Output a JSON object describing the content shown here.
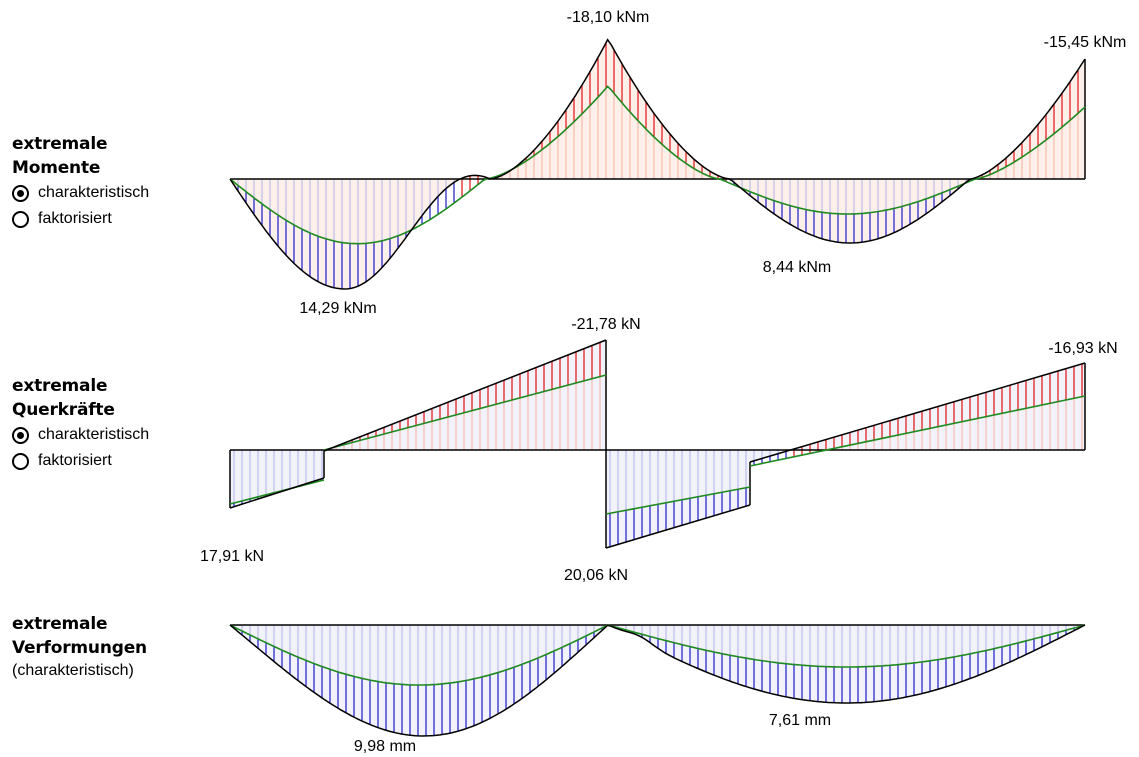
{
  "panels": {
    "moments": {
      "title_line1": "extremale",
      "title_line2": "Momente",
      "options": [
        {
          "label": "charakteristisch",
          "selected": true
        },
        {
          "label": "faktorisiert",
          "selected": false
        }
      ]
    },
    "shear": {
      "title_line1": "extremale",
      "title_line2": "Querkräfte",
      "options": [
        {
          "label": "charakteristisch",
          "selected": true
        },
        {
          "label": "faktorisiert",
          "selected": false
        }
      ]
    },
    "deformation": {
      "title_line1": "extremale",
      "title_line2": "Verformungen",
      "subtitle": "(charakteristisch)"
    }
  },
  "colors": {
    "positive": "#1a1acc",
    "negative": "#e01010",
    "characteristic": "#1f8a1f",
    "envelope": "#000000",
    "positive_fill": "#f2f2fb",
    "negative_fill": "#fdefea"
  },
  "chart_data": [
    {
      "type": "area",
      "title": "",
      "values_labeled": [
        {
          "text": "-18,10 kNm",
          "value": -18.1
        },
        {
          "text": "-15,45 kNm",
          "value": -15.45
        },
        {
          "text": "14,29 kNm",
          "value": 14.29
        },
        {
          "text": "8,44 kNm",
          "value": 8.44
        }
      ]
    },
    {
      "type": "area",
      "title": "",
      "values_labeled": [
        {
          "text": "-21,78 kN",
          "value": -21.78
        },
        {
          "text": "-16,93 kN",
          "value": -16.93
        },
        {
          "text": "17,91 kN",
          "value": 17.91
        },
        {
          "text": "20,06 kN",
          "value": 20.06
        }
      ]
    },
    {
      "type": "area",
      "title": "",
      "values_labeled": [
        {
          "text": "9,98 mm",
          "value": 9.98
        },
        {
          "text": "7,61 mm",
          "value": 7.61
        }
      ]
    }
  ]
}
